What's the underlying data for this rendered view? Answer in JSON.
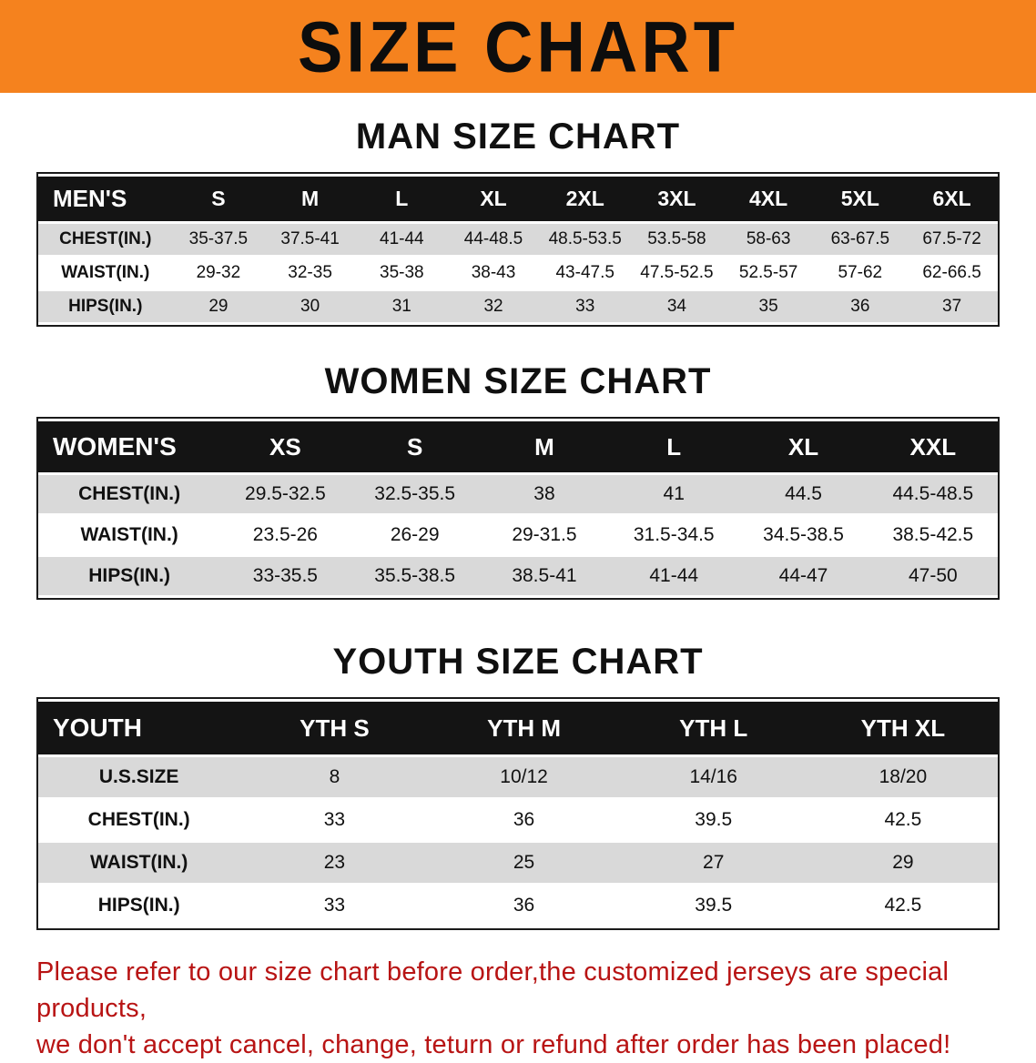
{
  "banner": {
    "title": "SIZE CHART"
  },
  "colors": {
    "banner_bg": "#f5821e",
    "header_bg": "#141414",
    "stripe": "#d9d9d9",
    "footer_text": "#b81414"
  },
  "chart_data": [
    {
      "type": "table",
      "title": "MAN SIZE CHART",
      "header": [
        "MEN'S",
        "S",
        "M",
        "L",
        "XL",
        "2XL",
        "3XL",
        "4XL",
        "5XL",
        "6XL"
      ],
      "rows": [
        [
          "CHEST(IN.)",
          "35-37.5",
          "37.5-41",
          "41-44",
          "44-48.5",
          "48.5-53.5",
          "53.5-58",
          "58-63",
          "63-67.5",
          "67.5-72"
        ],
        [
          "WAIST(IN.)",
          "29-32",
          "32-35",
          "35-38",
          "38-43",
          "43-47.5",
          "47.5-52.5",
          "52.5-57",
          "57-62",
          "62-66.5"
        ],
        [
          "HIPS(IN.)",
          "29",
          "30",
          "31",
          "32",
          "33",
          "34",
          "35",
          "36",
          "37"
        ]
      ]
    },
    {
      "type": "table",
      "title": "WOMEN SIZE CHART",
      "header": [
        "WOMEN'S",
        "XS",
        "S",
        "M",
        "L",
        "XL",
        "XXL"
      ],
      "rows": [
        [
          "CHEST(IN.)",
          "29.5-32.5",
          "32.5-35.5",
          "38",
          "41",
          "44.5",
          "44.5-48.5"
        ],
        [
          "WAIST(IN.)",
          "23.5-26",
          "26-29",
          "29-31.5",
          "31.5-34.5",
          "34.5-38.5",
          "38.5-42.5"
        ],
        [
          "HIPS(IN.)",
          "33-35.5",
          "35.5-38.5",
          "38.5-41",
          "41-44",
          "44-47",
          "47-50"
        ]
      ]
    },
    {
      "type": "table",
      "title": "YOUTH SIZE CHART",
      "header": [
        "YOUTH",
        "YTH S",
        "YTH M",
        "YTH L",
        "YTH XL"
      ],
      "rows": [
        [
          "U.S.SIZE",
          "8",
          "10/12",
          "14/16",
          "18/20"
        ],
        [
          "CHEST(IN.)",
          "33",
          "36",
          "39.5",
          "42.5"
        ],
        [
          "WAIST(IN.)",
          "23",
          "25",
          "27",
          "29"
        ],
        [
          "HIPS(IN.)",
          "33",
          "36",
          "39.5",
          "42.5"
        ]
      ]
    }
  ],
  "footer": {
    "line1": "Please refer to our size chart before order,the customized jerseys are special products,",
    "line2": "we don't accept cancel, change, teturn or refund after order has been placed!"
  }
}
